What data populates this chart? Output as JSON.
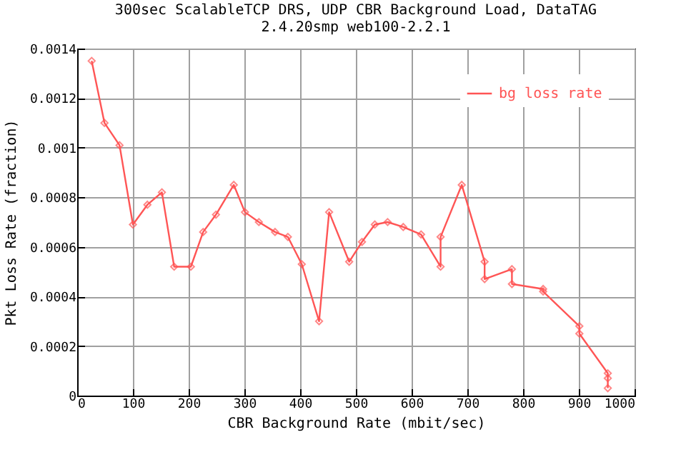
{
  "chart_data": {
    "type": "line",
    "title": [
      "300sec ScalableTCP DRS, UDP CBR Background Load, DataTAG",
      "2.4.20smp web100-2.2.1"
    ],
    "xlabel": "CBR Background Rate (mbit/sec)",
    "ylabel": "Pkt Loss Rate (fraction)",
    "series": [
      {
        "name": "bg loss rate",
        "color": "#ff5555",
        "x": [
          26,
          49,
          76,
          100,
          126,
          152,
          174,
          204,
          226,
          249,
          281,
          301,
          326,
          355,
          378,
          403,
          434,
          452,
          488,
          511,
          534,
          557,
          585,
          617,
          652,
          652,
          690,
          731,
          731,
          780,
          780,
          836,
          836,
          901,
          901,
          952,
          952,
          952
        ],
        "values": [
          0.00135,
          0.0011,
          0.00101,
          0.00069,
          0.00077,
          0.00082,
          0.00052,
          0.00052,
          0.00066,
          0.00073,
          0.00085,
          0.00074,
          0.0007,
          0.00066,
          0.00064,
          0.00053,
          0.0003,
          0.00074,
          0.00054,
          0.00062,
          0.00069,
          0.0007,
          0.00068,
          0.00065,
          0.00052,
          0.00064,
          0.00085,
          0.00054,
          0.00047,
          0.00051,
          0.00045,
          0.00043,
          0.00042,
          0.00028,
          0.00025,
          9e-05,
          7e-05,
          3e-05
        ]
      }
    ],
    "xlim": [
      0,
      1000
    ],
    "xticks": [
      0,
      100,
      200,
      300,
      400,
      500,
      600,
      700,
      800,
      900,
      1000
    ],
    "ylim": [
      0,
      0.0014
    ],
    "yticks": [
      0,
      0.0002,
      0.0004,
      0.0006,
      0.0008,
      0.001,
      0.0012,
      0.0014
    ],
    "grid": true,
    "legend": "top right",
    "marker": "diamond",
    "line_style": "solid"
  }
}
